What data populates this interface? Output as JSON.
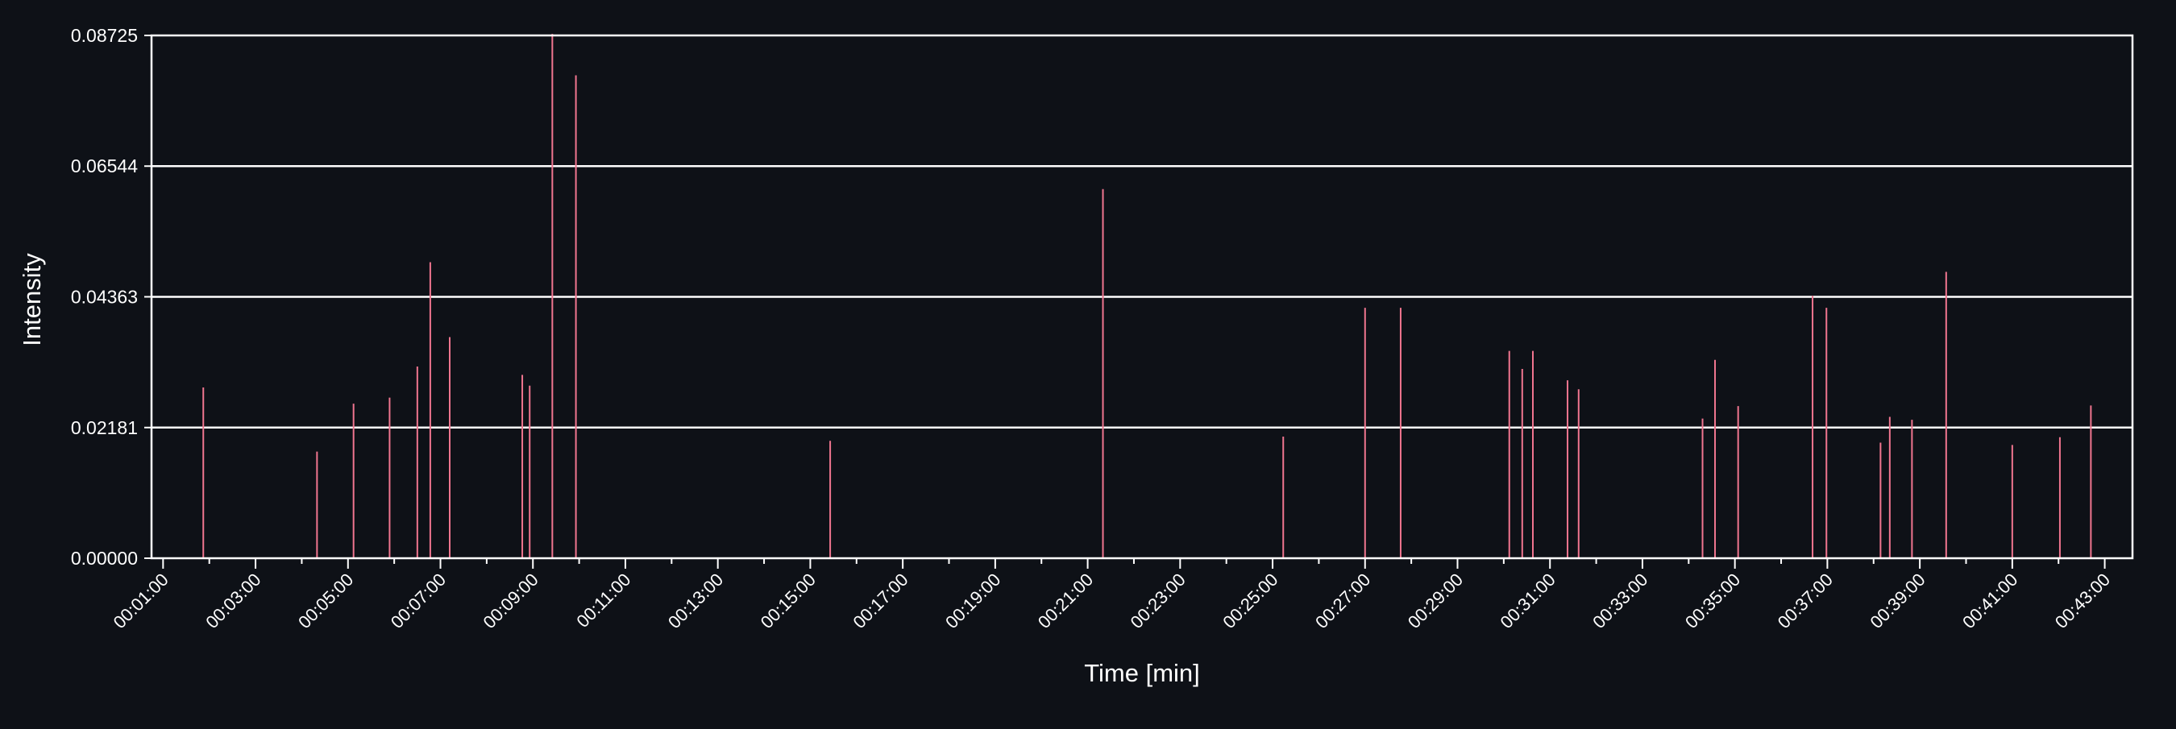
{
  "colors": {
    "background": "#0e1117",
    "axes": "#ffffff",
    "grid": "#ffffff",
    "series": "#f0758f",
    "text": "#ffffff"
  },
  "chart_data": {
    "type": "bar",
    "title": "",
    "xlabel": "Time [min]",
    "ylabel": "Intensity",
    "xlim": [
      0.75,
      43.6
    ],
    "ylim": [
      0,
      0.08725
    ],
    "y_ticks": [
      "0.00000",
      "0.02181",
      "0.04363",
      "0.06544",
      "0.08725"
    ],
    "y_tick_values": [
      0,
      0.02181,
      0.04363,
      0.06544,
      0.08725
    ],
    "x_ticks": [
      "00:01:00",
      "00:03:00",
      "00:05:00",
      "00:07:00",
      "00:09:00",
      "00:11:00",
      "00:13:00",
      "00:15:00",
      "00:17:00",
      "00:19:00",
      "00:21:00",
      "00:23:00",
      "00:25:00",
      "00:27:00",
      "00:29:00",
      "00:31:00",
      "00:33:00",
      "00:35:00",
      "00:37:00",
      "00:39:00",
      "00:41:00",
      "00:43:00"
    ],
    "x_tick_values": [
      1,
      3,
      5,
      7,
      9,
      11,
      13,
      15,
      17,
      19,
      21,
      23,
      25,
      27,
      29,
      31,
      33,
      35,
      37,
      39,
      41,
      43
    ],
    "x_minor_tick_values": [
      2,
      4,
      6,
      8,
      10,
      12,
      14,
      16,
      18,
      20,
      22,
      24,
      26,
      28,
      30,
      32,
      34,
      36,
      38,
      40,
      42
    ],
    "grid": "horizontal",
    "series": [
      {
        "x": [
          1.87,
          4.33,
          5.12,
          5.9,
          6.5,
          6.78,
          7.2,
          8.77,
          8.93,
          9.42,
          9.93,
          15.43,
          21.33,
          25.23,
          27.0,
          27.77,
          30.12,
          30.4,
          30.63,
          31.38,
          31.62,
          34.3,
          34.57,
          35.07,
          36.68,
          36.98,
          38.15,
          38.35,
          38.83,
          39.57,
          41.0,
          42.03,
          42.7
        ],
        "values": [
          0.0285,
          0.0178,
          0.0258,
          0.0268,
          0.032,
          0.0494,
          0.0369,
          0.0306,
          0.0288,
          0.0875,
          0.0806,
          0.0196,
          0.0616,
          0.0203,
          0.0418,
          0.0418,
          0.0346,
          0.0316,
          0.0346,
          0.0297,
          0.0282,
          0.0233,
          0.0331,
          0.0254,
          0.0438,
          0.0418,
          0.0193,
          0.0236,
          0.0231,
          0.0478,
          0.0189,
          0.0202,
          0.0255
        ]
      }
    ]
  }
}
